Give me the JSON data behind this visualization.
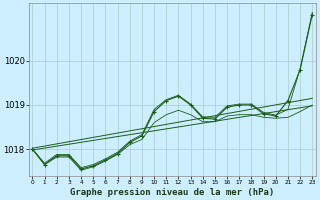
{
  "title": "Graphe pression niveau de la mer (hPa)",
  "bg_color": "#cceeff",
  "grid_color": "#aacccc",
  "line_color": "#1a5c1a",
  "x_hours": [
    0,
    1,
    2,
    3,
    4,
    5,
    6,
    7,
    8,
    9,
    10,
    11,
    12,
    13,
    14,
    15,
    16,
    17,
    18,
    19,
    20,
    21,
    22,
    23
  ],
  "y_main": [
    1018.0,
    1017.65,
    1017.85,
    1017.85,
    1017.55,
    1017.62,
    1017.75,
    1017.9,
    1018.15,
    1018.3,
    1018.85,
    1019.1,
    1019.2,
    1019.0,
    1018.7,
    1018.68,
    1018.95,
    1019.0,
    1019.0,
    1018.8,
    1018.75,
    1019.1,
    1019.8,
    1021.05
  ],
  "y_lo": [
    1018.0,
    1017.65,
    1017.82,
    1017.82,
    1017.52,
    1017.6,
    1017.73,
    1017.88,
    1018.1,
    1018.22,
    1018.6,
    1018.78,
    1018.88,
    1018.78,
    1018.62,
    1018.62,
    1018.75,
    1018.78,
    1018.78,
    1018.72,
    1018.7,
    1018.72,
    1018.85,
    1019.0
  ],
  "y_hi": [
    1018.0,
    1017.68,
    1017.88,
    1017.88,
    1017.58,
    1017.65,
    1017.78,
    1017.93,
    1018.18,
    1018.33,
    1018.9,
    1019.12,
    1019.22,
    1019.02,
    1018.73,
    1018.72,
    1018.98,
    1019.02,
    1019.02,
    1018.83,
    1018.77,
    1018.9,
    1019.82,
    1021.1
  ],
  "y_trend_lo": [
    1017.98,
    1018.0,
    1018.02,
    1018.04,
    1018.06,
    1018.09,
    1018.12,
    1018.15,
    1018.19,
    1018.23,
    1018.3,
    1018.38,
    1018.46,
    1018.52,
    1018.57,
    1018.6,
    1018.63,
    1018.66,
    1018.68,
    1018.7,
    1018.72,
    1018.74,
    1018.82,
    1018.98
  ],
  "y_trend_hi": [
    1018.02,
    1018.04,
    1018.07,
    1018.1,
    1018.13,
    1018.16,
    1018.2,
    1018.24,
    1018.29,
    1018.34,
    1018.42,
    1018.52,
    1018.61,
    1018.67,
    1018.72,
    1018.75,
    1018.79,
    1018.82,
    1018.84,
    1018.86,
    1018.88,
    1018.9,
    1018.98,
    1019.15
  ],
  "ylim": [
    1017.4,
    1021.3
  ],
  "yticks": [
    1018,
    1019,
    1020
  ],
  "xticks": [
    0,
    1,
    2,
    3,
    4,
    5,
    6,
    7,
    8,
    9,
    10,
    11,
    12,
    13,
    14,
    15,
    16,
    17,
    18,
    19,
    20,
    21,
    22,
    23
  ]
}
